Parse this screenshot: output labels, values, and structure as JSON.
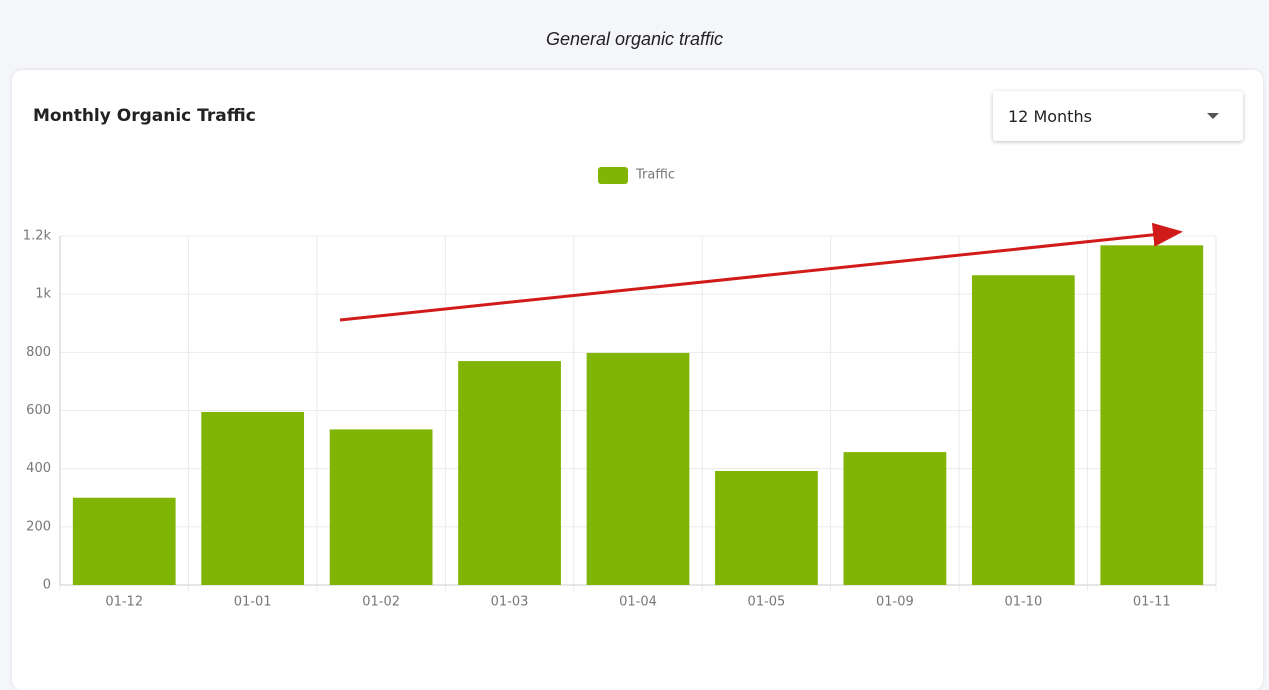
{
  "page_caption": "General organic traffic",
  "card_title": "Monthly Organic Traffic",
  "period_selector": "12 Months",
  "chart_data": {
    "type": "bar",
    "categories": [
      "01-12",
      "01-01",
      "01-02",
      "01-03",
      "01-04",
      "01-05",
      "01-09",
      "01-10",
      "01-11"
    ],
    "series": [
      {
        "name": "Traffic",
        "color": "#80b505",
        "values": [
          300,
          595,
          535,
          770,
          798,
          392,
          457,
          1065,
          1168
        ]
      }
    ],
    "ylim": [
      0,
      1200
    ],
    "yticks": [
      0,
      200,
      400,
      600,
      800,
      {
        "value": 1000,
        "label": "1k"
      },
      {
        "value": 1200,
        "label": "1.2k"
      }
    ],
    "grid": true,
    "legend": "top"
  }
}
